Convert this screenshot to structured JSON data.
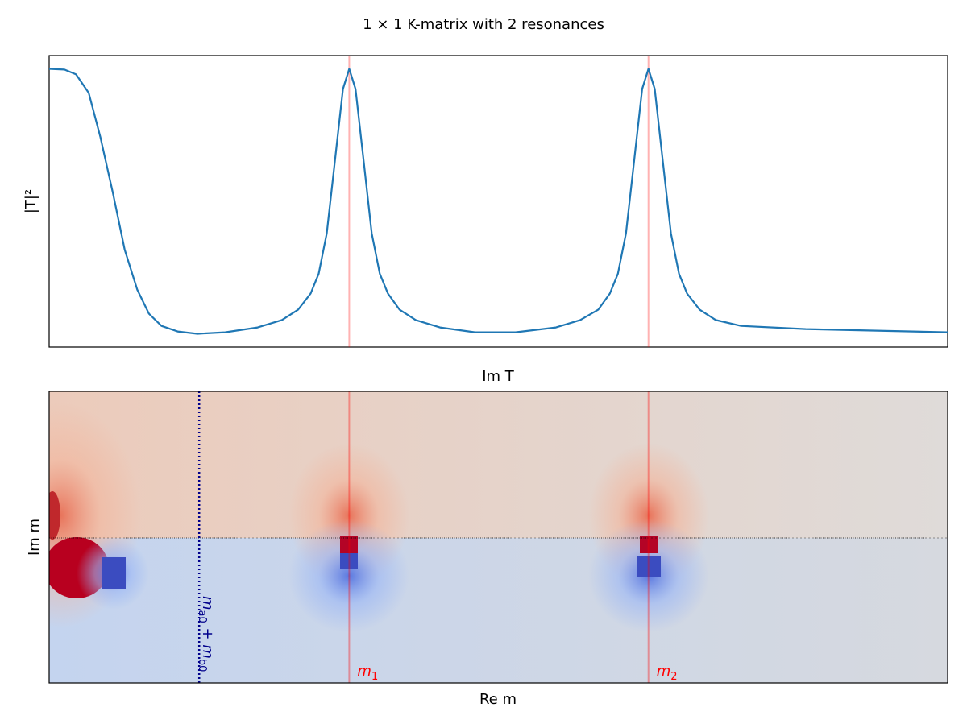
{
  "chart_data": {
    "type": "line",
    "title": "1 × 1 K-matrix with 2 resonances",
    "ylabel": "|T|²",
    "heatmap_title": "Im T",
    "heatmap_ylabel": "Im m",
    "xlabel": "Re m",
    "xlim": [
      0,
      1
    ],
    "ylim": [
      -0.05,
      1.05
    ],
    "series": [
      {
        "color": "#1f77b4",
        "x": [
          0,
          0.017,
          0.03,
          0.044,
          0.057,
          0.071,
          0.084,
          0.098,
          0.111,
          0.125,
          0.143,
          0.165,
          0.196,
          0.232,
          0.259,
          0.277,
          0.291,
          0.3,
          0.309,
          0.318,
          0.327,
          0.334,
          0.341,
          0.35,
          0.359,
          0.368,
          0.377,
          0.39,
          0.408,
          0.435,
          0.474,
          0.519,
          0.564,
          0.591,
          0.611,
          0.624,
          0.633,
          0.642,
          0.651,
          0.66,
          0.667,
          0.674,
          0.683,
          0.692,
          0.701,
          0.71,
          0.724,
          0.742,
          0.77,
          0.842,
          1.0
        ],
        "values": [
          1.0,
          0.997,
          0.979,
          0.909,
          0.742,
          0.53,
          0.318,
          0.167,
          0.076,
          0.03,
          0.009,
          0.0,
          0.006,
          0.024,
          0.052,
          0.091,
          0.152,
          0.227,
          0.379,
          0.652,
          0.924,
          1.0,
          0.924,
          0.652,
          0.379,
          0.227,
          0.152,
          0.091,
          0.052,
          0.024,
          0.006,
          0.006,
          0.024,
          0.052,
          0.091,
          0.152,
          0.227,
          0.379,
          0.652,
          0.924,
          1.0,
          0.924,
          0.652,
          0.379,
          0.227,
          0.152,
          0.091,
          0.052,
          0.03,
          0.018,
          0.006
        ]
      }
    ],
    "resonances": [
      {
        "x": 0.334,
        "label": "m",
        "sub": "1"
      },
      {
        "x": 0.667,
        "label": "m",
        "sub": "2"
      }
    ],
    "resonance_color": "#ff0000",
    "threshold": {
      "x": 0.167,
      "label_parts": [
        "m",
        "a0",
        " + ",
        "m",
        "b0"
      ],
      "color": "#00008b"
    }
  }
}
